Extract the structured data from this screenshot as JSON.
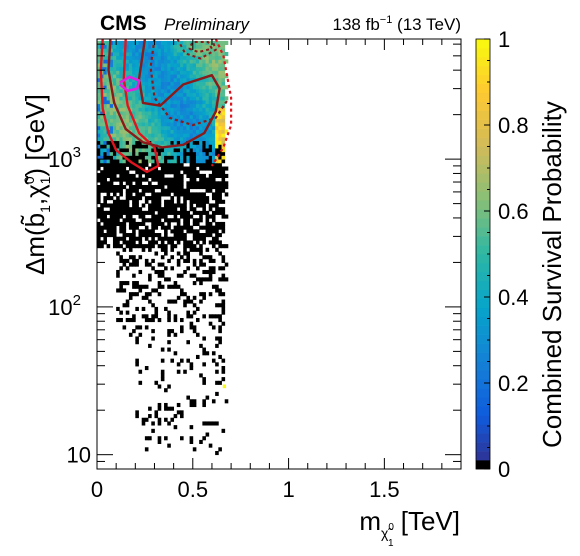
{
  "header": {
    "cms": "CMS",
    "preliminary": "Preliminary",
    "lumi_prefix": "138 fb",
    "lumi_sup": "−1",
    "lumi_suffix": " (13 TeV)"
  },
  "chart_data": {
    "type": "heatmap",
    "xlabel": {
      "main": "m",
      "sub": "χ̃",
      "sub_sup": "0",
      "sub_sub": "1",
      "unit": " [TeV]"
    },
    "ylabel": {
      "main": "Δm(",
      "b": "b̃",
      "b_sub": "1",
      "comma": ",",
      "chi": "χ̃",
      "chi_sup": "0",
      "chi_sub": "1",
      "close": ") [GeV]"
    },
    "zlabel": "Combined Survival Probability",
    "x_scale": "linear",
    "y_scale": "log",
    "xlim": [
      0,
      1.9
    ],
    "ylim": [
      8,
      6500
    ],
    "zlim": [
      0,
      1
    ],
    "x_ticks": [
      {
        "v": 0,
        "label": "0"
      },
      {
        "v": 0.5,
        "label": "0.5"
      },
      {
        "v": 1,
        "label": "1"
      },
      {
        "v": 1.5,
        "label": "1.5"
      }
    ],
    "y_ticks": [
      {
        "v": 10,
        "base": "10",
        "exp": ""
      },
      {
        "v": 100,
        "base": "10",
        "exp": "2"
      },
      {
        "v": 1000,
        "base": "10",
        "exp": "3"
      }
    ],
    "z_ticks": [
      {
        "v": 0,
        "label": "0"
      },
      {
        "v": 0.2,
        "label": "0.2"
      },
      {
        "v": 0.4,
        "label": "0.4"
      },
      {
        "v": 0.6,
        "label": "0.6"
      },
      {
        "v": 0.8,
        "label": "0.8"
      },
      {
        "v": 1,
        "label": "1"
      }
    ],
    "colors": {
      "zero": "#000000",
      "palette": [
        "#352a87",
        "#0f5cdd",
        "#1481d6",
        "#06a4ca",
        "#2eb7a4",
        "#87bf77",
        "#d1bb59",
        "#fec832",
        "#f9fb0e"
      ],
      "contour_dark": "#8b1a1a",
      "contour_red": "#e0141e",
      "contour_magenta": "#e020e0"
    },
    "bins": {
      "x_min": 0.0,
      "x_max": 0.7,
      "nx": 42,
      "log10y_min": 1.0,
      "log10y_max": 3.8,
      "ny": 112
    },
    "note_values": "Each bin shows a combined survival probability in [0,1]; bins with 0 are black, empty bins are white.",
    "regions": [
      {
        "desc": "high-mass band",
        "y_range": [
          900,
          6500
        ],
        "x_range": [
          0.0,
          0.7
        ],
        "prob_range": [
          0.25,
          0.85
        ]
      },
      {
        "desc": "low-mass tail",
        "y_range": [
          10,
          900
        ],
        "x_range": [
          0.0,
          0.7
        ],
        "prob": 0.0
      }
    ],
    "isolated_points": [
      {
        "x": 0.665,
        "y": 29,
        "value": 1.0
      }
    ]
  }
}
